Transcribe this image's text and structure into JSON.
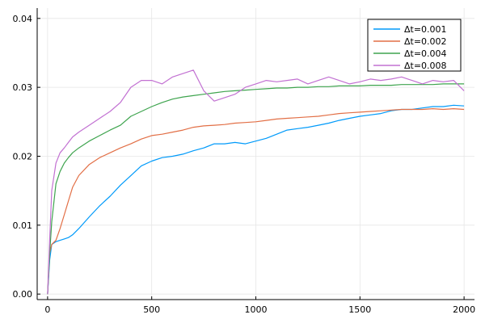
{
  "chart_data": {
    "type": "line",
    "title": "",
    "xlabel": "",
    "ylabel": "",
    "xlim": [
      -50,
      2050
    ],
    "ylim": [
      -0.0008,
      0.0415
    ],
    "xticks": [
      0,
      500,
      1000,
      1500,
      2000
    ],
    "xtick_labels": [
      "0",
      "500",
      "1000",
      "1500",
      "2000"
    ],
    "yticks": [
      0.0,
      0.01,
      0.02,
      0.03,
      0.04
    ],
    "ytick_labels": [
      "0.00",
      "0.01",
      "0.02",
      "0.03",
      "0.04"
    ],
    "grid": true,
    "legend_position": "top-right",
    "series": [
      {
        "name": "Δt=0.001",
        "color": "#009AFA",
        "x": [
          0,
          10,
          20,
          40,
          60,
          80,
          100,
          120,
          150,
          200,
          250,
          300,
          350,
          400,
          450,
          500,
          550,
          600,
          650,
          700,
          750,
          800,
          850,
          900,
          950,
          1000,
          1050,
          1100,
          1150,
          1200,
          1250,
          1300,
          1350,
          1400,
          1450,
          1500,
          1550,
          1600,
          1650,
          1700,
          1750,
          1800,
          1850,
          1900,
          1950,
          2000
        ],
        "y": [
          0.0,
          0.005,
          0.0072,
          0.0076,
          0.0078,
          0.008,
          0.0082,
          0.0086,
          0.0095,
          0.0112,
          0.0128,
          0.0142,
          0.0158,
          0.0172,
          0.0186,
          0.0193,
          0.0198,
          0.02,
          0.0203,
          0.0208,
          0.0212,
          0.0218,
          0.0218,
          0.022,
          0.0218,
          0.0222,
          0.0226,
          0.0232,
          0.0238,
          0.024,
          0.0242,
          0.0245,
          0.0248,
          0.0252,
          0.0255,
          0.0258,
          0.026,
          0.0262,
          0.0266,
          0.0268,
          0.0268,
          0.027,
          0.0272,
          0.0272,
          0.0274,
          0.0273
        ]
      },
      {
        "name": "Δt=0.002",
        "color": "#E26F46",
        "x": [
          0,
          10,
          20,
          40,
          60,
          80,
          100,
          120,
          150,
          200,
          250,
          300,
          350,
          400,
          450,
          500,
          550,
          600,
          650,
          700,
          750,
          800,
          850,
          900,
          950,
          1000,
          1050,
          1100,
          1150,
          1200,
          1250,
          1300,
          1350,
          1400,
          1450,
          1500,
          1550,
          1600,
          1650,
          1700,
          1750,
          1800,
          1850,
          1900,
          1950,
          2000
        ],
        "y": [
          0.0,
          0.006,
          0.0072,
          0.0078,
          0.0095,
          0.0115,
          0.0135,
          0.0155,
          0.0172,
          0.0188,
          0.0198,
          0.0205,
          0.0212,
          0.0218,
          0.0225,
          0.023,
          0.0232,
          0.0235,
          0.0238,
          0.0242,
          0.0244,
          0.0245,
          0.0246,
          0.0248,
          0.0249,
          0.025,
          0.0252,
          0.0254,
          0.0255,
          0.0256,
          0.0257,
          0.0258,
          0.026,
          0.0262,
          0.0263,
          0.0264,
          0.0265,
          0.0266,
          0.0267,
          0.0268,
          0.0268,
          0.0268,
          0.0269,
          0.0268,
          0.0269,
          0.0268
        ]
      },
      {
        "name": "Δt=0.004",
        "color": "#3EA44E",
        "x": [
          0,
          10,
          20,
          40,
          60,
          80,
          100,
          120,
          150,
          200,
          250,
          300,
          350,
          400,
          450,
          500,
          550,
          600,
          650,
          700,
          750,
          800,
          850,
          900,
          950,
          1000,
          1050,
          1100,
          1150,
          1200,
          1250,
          1300,
          1350,
          1400,
          1450,
          1500,
          1550,
          1600,
          1650,
          1700,
          1750,
          1800,
          1850,
          1900,
          1950,
          2000
        ],
        "y": [
          0.0,
          0.006,
          0.0105,
          0.016,
          0.0178,
          0.019,
          0.0198,
          0.0205,
          0.0212,
          0.0222,
          0.023,
          0.0238,
          0.0245,
          0.0258,
          0.0265,
          0.0272,
          0.0278,
          0.0283,
          0.0286,
          0.0288,
          0.029,
          0.0292,
          0.0294,
          0.0295,
          0.0296,
          0.0297,
          0.0298,
          0.0299,
          0.0299,
          0.03,
          0.03,
          0.0301,
          0.0301,
          0.0302,
          0.0302,
          0.0302,
          0.0303,
          0.0303,
          0.0303,
          0.0304,
          0.0304,
          0.0304,
          0.0304,
          0.0305,
          0.0305,
          0.0305
        ]
      },
      {
        "name": "Δt=0.008",
        "color": "#C271D2",
        "x": [
          0,
          10,
          20,
          40,
          60,
          80,
          100,
          120,
          150,
          200,
          250,
          300,
          350,
          400,
          450,
          500,
          550,
          600,
          650,
          700,
          750,
          800,
          850,
          900,
          950,
          1000,
          1050,
          1100,
          1150,
          1200,
          1250,
          1300,
          1350,
          1400,
          1450,
          1500,
          1550,
          1600,
          1650,
          1700,
          1750,
          1800,
          1850,
          1900,
          1950,
          2000
        ],
        "y": [
          0.0,
          0.008,
          0.015,
          0.019,
          0.0205,
          0.0212,
          0.022,
          0.0228,
          0.0235,
          0.0245,
          0.0255,
          0.0265,
          0.0278,
          0.03,
          0.031,
          0.031,
          0.0305,
          0.0315,
          0.032,
          0.0325,
          0.0295,
          0.028,
          0.0285,
          0.029,
          0.03,
          0.0305,
          0.031,
          0.0308,
          0.031,
          0.0312,
          0.0305,
          0.031,
          0.0315,
          0.031,
          0.0305,
          0.0308,
          0.0312,
          0.031,
          0.0312,
          0.0315,
          0.031,
          0.0305,
          0.031,
          0.0308,
          0.031,
          0.0295
        ]
      }
    ]
  }
}
